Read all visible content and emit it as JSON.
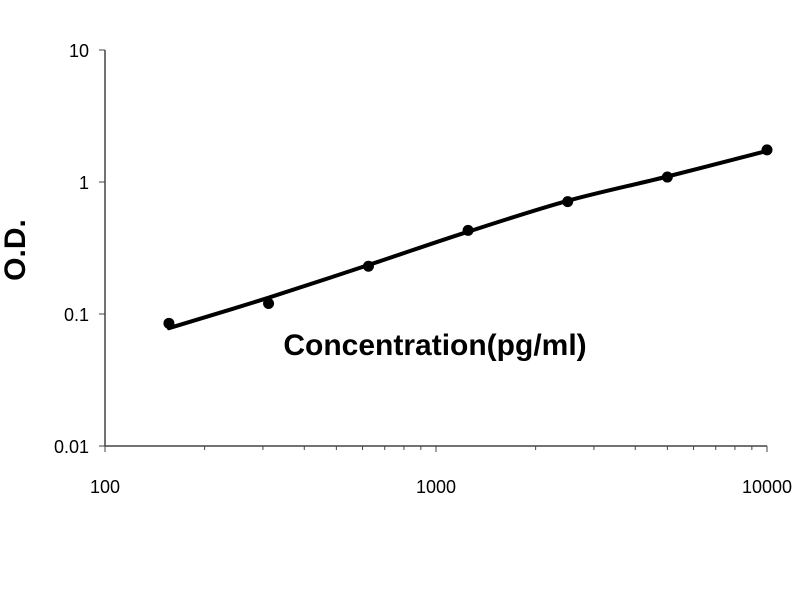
{
  "chart_data": {
    "type": "scatter",
    "title": "",
    "xlabel": "Concentration(pg/ml)",
    "ylabel": "O.D.",
    "x_scale": "log",
    "y_scale": "log",
    "xlim": [
      100,
      10000
    ],
    "ylim": [
      0.01,
      10
    ],
    "x_ticks": [
      "100",
      "1000",
      "10000"
    ],
    "y_ticks": [
      "0.01",
      "0.1",
      "1",
      "10"
    ],
    "grid": false,
    "legend": "none",
    "series": [
      {
        "points": [
          {
            "x": 156,
            "y": 0.085
          },
          {
            "x": 312,
            "y": 0.12
          },
          {
            "x": 625,
            "y": 0.23
          },
          {
            "x": 1250,
            "y": 0.43
          },
          {
            "x": 2500,
            "y": 0.71
          },
          {
            "x": 5000,
            "y": 1.09
          },
          {
            "x": 10000,
            "y": 1.75
          }
        ],
        "fit_line": [
          {
            "x": 156,
            "y": 0.078
          },
          {
            "x": 312,
            "y": 0.133
          },
          {
            "x": 625,
            "y": 0.235
          },
          {
            "x": 1250,
            "y": 0.42
          },
          {
            "x": 2500,
            "y": 0.72
          },
          {
            "x": 5000,
            "y": 1.1
          },
          {
            "x": 10000,
            "y": 1.72
          }
        ]
      }
    ],
    "color": "#000000"
  }
}
